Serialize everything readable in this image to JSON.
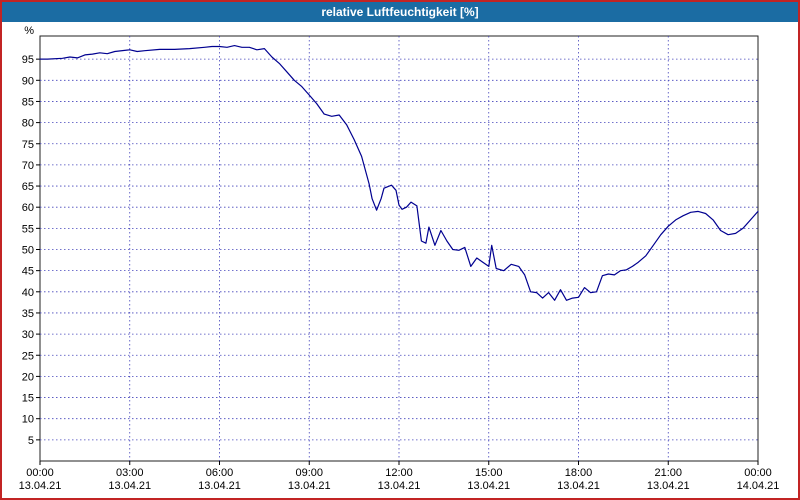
{
  "window": {
    "title": "relative Luftfeuchtigkeit [%]"
  },
  "colors": {
    "titlebar": "#1b6ca3",
    "window_border": "#c22424",
    "plot_frame": "#222222",
    "grid": "#4444bb",
    "line": "#000090",
    "plot_bg": "#ffffff"
  },
  "chart_data": {
    "type": "line",
    "title": "relative Luftfeuchtigkeit [%]",
    "ylabel": "%",
    "ylim": [
      0,
      100
    ],
    "yticks": [
      5,
      10,
      15,
      20,
      25,
      30,
      35,
      40,
      45,
      50,
      55,
      60,
      65,
      70,
      75,
      80,
      85,
      90,
      95
    ],
    "xlim": [
      0,
      24
    ],
    "xticks": [
      {
        "hour": 0,
        "time": "00:00",
        "date": "13.04.21"
      },
      {
        "hour": 3,
        "time": "03:00",
        "date": "13.04.21"
      },
      {
        "hour": 6,
        "time": "06:00",
        "date": "13.04.21"
      },
      {
        "hour": 9,
        "time": "09:00",
        "date": "13.04.21"
      },
      {
        "hour": 12,
        "time": "12:00",
        "date": "13.04.21"
      },
      {
        "hour": 15,
        "time": "15:00",
        "date": "13.04.21"
      },
      {
        "hour": 18,
        "time": "18:00",
        "date": "13.04.21"
      },
      {
        "hour": 21,
        "time": "21:00",
        "date": "13.04.21"
      },
      {
        "hour": 24,
        "time": "00:00",
        "date": "14.04.21"
      }
    ],
    "grid": true,
    "legend": "none",
    "series": [
      {
        "name": "relative Luftfeuchtigkeit",
        "color": "#000090",
        "points": [
          [
            0,
            95
          ],
          [
            0.25,
            95
          ],
          [
            0.75,
            95.2
          ],
          [
            1,
            95.5
          ],
          [
            1.25,
            95.3
          ],
          [
            1.5,
            96
          ],
          [
            1.75,
            96.2
          ],
          [
            2,
            96.5
          ],
          [
            2.25,
            96.3
          ],
          [
            2.5,
            96.8
          ],
          [
            3,
            97.2
          ],
          [
            3.25,
            96.8
          ],
          [
            3.5,
            97
          ],
          [
            4,
            97.3
          ],
          [
            4.5,
            97.3
          ],
          [
            5,
            97.5
          ],
          [
            5.5,
            97.8
          ],
          [
            5.75,
            98
          ],
          [
            6,
            98
          ],
          [
            6.25,
            97.8
          ],
          [
            6.5,
            98.2
          ],
          [
            6.75,
            97.8
          ],
          [
            7,
            97.8
          ],
          [
            7.25,
            97.2
          ],
          [
            7.5,
            97.5
          ],
          [
            7.75,
            95.5
          ],
          [
            8,
            94
          ],
          [
            8.25,
            92
          ],
          [
            8.5,
            90
          ],
          [
            8.75,
            88.5
          ],
          [
            9,
            86.5
          ],
          [
            9.25,
            84.5
          ],
          [
            9.5,
            82
          ],
          [
            9.75,
            81.5
          ],
          [
            10,
            81.8
          ],
          [
            10.25,
            79.5
          ],
          [
            10.5,
            76
          ],
          [
            10.75,
            72
          ],
          [
            11,
            65.5
          ],
          [
            11.1,
            62
          ],
          [
            11.25,
            59.3
          ],
          [
            11.4,
            62
          ],
          [
            11.5,
            64.5
          ],
          [
            11.75,
            65.2
          ],
          [
            11.9,
            64
          ],
          [
            12,
            60.5
          ],
          [
            12.1,
            59.5
          ],
          [
            12.25,
            60
          ],
          [
            12.4,
            61.2
          ],
          [
            12.6,
            60.3
          ],
          [
            12.75,
            52
          ],
          [
            12.9,
            51.5
          ],
          [
            13,
            55.3
          ],
          [
            13.2,
            51
          ],
          [
            13.4,
            54.5
          ],
          [
            13.6,
            52
          ],
          [
            13.8,
            50
          ],
          [
            14,
            49.8
          ],
          [
            14.2,
            50.5
          ],
          [
            14.4,
            46
          ],
          [
            14.6,
            48
          ],
          [
            14.8,
            47
          ],
          [
            15,
            46
          ],
          [
            15.1,
            51
          ],
          [
            15.25,
            45.5
          ],
          [
            15.5,
            45
          ],
          [
            15.75,
            46.5
          ],
          [
            16,
            46
          ],
          [
            16.2,
            44
          ],
          [
            16.4,
            40
          ],
          [
            16.6,
            39.8
          ],
          [
            16.8,
            38.5
          ],
          [
            17,
            39.8
          ],
          [
            17.2,
            38
          ],
          [
            17.4,
            40.5
          ],
          [
            17.6,
            38
          ],
          [
            17.8,
            38.5
          ],
          [
            18,
            38.7
          ],
          [
            18.2,
            41
          ],
          [
            18.4,
            39.8
          ],
          [
            18.6,
            40
          ],
          [
            18.8,
            43.8
          ],
          [
            19,
            44.2
          ],
          [
            19.2,
            44
          ],
          [
            19.4,
            45
          ],
          [
            19.6,
            45.2
          ],
          [
            19.8,
            46
          ],
          [
            20,
            47
          ],
          [
            20.25,
            48.5
          ],
          [
            20.5,
            51
          ],
          [
            20.75,
            53.5
          ],
          [
            21,
            55.5
          ],
          [
            21.25,
            57
          ],
          [
            21.5,
            58
          ],
          [
            21.75,
            58.8
          ],
          [
            22,
            59
          ],
          [
            22.25,
            58.5
          ],
          [
            22.5,
            57
          ],
          [
            22.75,
            54.5
          ],
          [
            23,
            53.5
          ],
          [
            23.25,
            53.8
          ],
          [
            23.5,
            55
          ],
          [
            23.75,
            57
          ],
          [
            24,
            59
          ]
        ]
      }
    ]
  }
}
